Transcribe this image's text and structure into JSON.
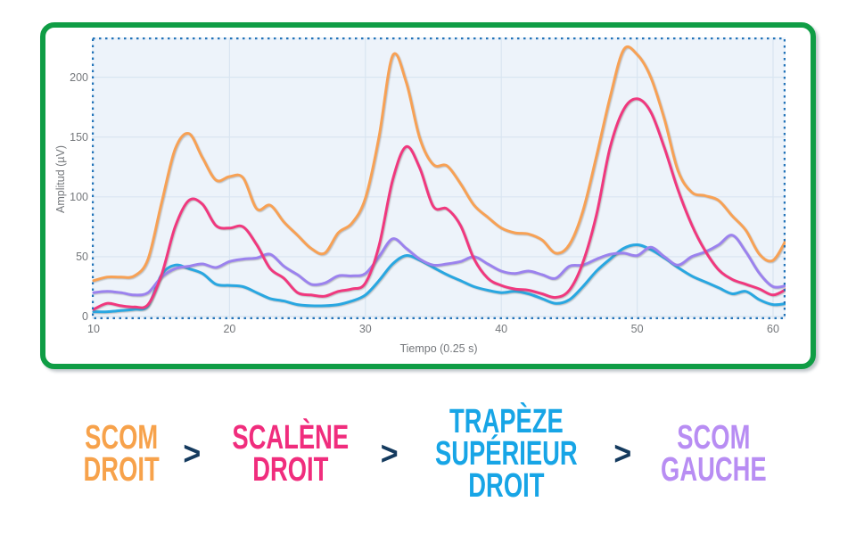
{
  "chart_panel": {
    "frame_color": "#0F9D45",
    "selection_border_color": "#2273B8",
    "plot_background": "#EDF3FA",
    "grid_color": "#D9E5F1",
    "axis_text_color": "#74777B",
    "y_axis_title": "Amplitud (µV)",
    "x_axis_title": "Tiempo (0.25 s)",
    "y_ticks": [
      0,
      50,
      100,
      150,
      200
    ],
    "x_ticks": [
      10,
      20,
      30,
      40,
      50,
      60
    ]
  },
  "chart_data": {
    "type": "line",
    "xlabel": "Tiempo (0.25 s)",
    "ylabel": "Amplitud (µV)",
    "xlim": [
      10,
      61
    ],
    "ylim": [
      0,
      233
    ],
    "grid": true,
    "legend_position": "none",
    "x": [
      10,
      11,
      12,
      13,
      14,
      15,
      16,
      17,
      18,
      19,
      20,
      21,
      22,
      23,
      24,
      25,
      26,
      27,
      28,
      29,
      30,
      31,
      32,
      33,
      34,
      35,
      36,
      37,
      38,
      39,
      40,
      41,
      42,
      43,
      44,
      45,
      46,
      47,
      48,
      49,
      50,
      51,
      52,
      53,
      54,
      55,
      56,
      57,
      58,
      59,
      60,
      61
    ],
    "series": [
      {
        "name": "Trapèze supérieur droit",
        "color": "#29A7E1",
        "values": [
          4,
          4,
          5,
          6,
          9,
          35,
          43,
          40,
          36,
          27,
          26,
          25,
          20,
          15,
          13,
          10,
          9,
          9,
          10,
          13,
          18,
          30,
          44,
          51,
          47,
          41,
          35,
          30,
          25,
          22,
          20,
          21,
          19,
          15,
          11,
          14,
          25,
          38,
          48,
          57,
          60,
          56,
          49,
          41,
          34,
          29,
          24,
          19,
          21,
          14,
          10,
          11
        ]
      },
      {
        "name": "SCOM gauche",
        "color": "#9B82EE",
        "values": [
          20,
          21,
          20,
          18,
          20,
          33,
          40,
          42,
          44,
          41,
          46,
          48,
          49,
          52,
          42,
          35,
          27,
          28,
          34,
          34,
          36,
          50,
          65,
          57,
          48,
          43,
          44,
          46,
          50,
          44,
          38,
          36,
          38,
          35,
          32,
          42,
          43,
          48,
          52,
          53,
          51,
          58,
          50,
          43,
          50,
          54,
          60,
          68,
          54,
          36,
          25,
          26
        ]
      },
      {
        "name": "Scalène droit",
        "color": "#F0387E",
        "values": [
          6,
          11,
          9,
          8,
          10,
          35,
          75,
          97,
          94,
          76,
          74,
          75,
          60,
          40,
          32,
          20,
          18,
          17,
          21,
          23,
          28,
          59,
          114,
          142,
          124,
          92,
          90,
          76,
          48,
          32,
          26,
          23,
          22,
          19,
          16,
          22,
          45,
          85,
          141,
          173,
          182,
          171,
          141,
          106,
          77,
          55,
          39,
          31,
          27,
          23,
          18,
          23
        ]
      },
      {
        "name": "SCOM droit",
        "color": "#F7A155",
        "values": [
          30,
          33,
          33,
          34,
          48,
          95,
          140,
          153,
          133,
          114,
          117,
          116,
          90,
          93,
          79,
          68,
          57,
          53,
          70,
          78,
          99,
          150,
          218,
          196,
          149,
          127,
          126,
          111,
          93,
          83,
          74,
          70,
          69,
          64,
          53,
          60,
          88,
          134,
          183,
          223,
          219,
          200,
          165,
          122,
          104,
          101,
          97,
          84,
          72,
          52,
          47,
          65
        ]
      }
    ]
  },
  "ranking": {
    "separator": ">",
    "separator_color": "#143A5E",
    "items": [
      {
        "name": "scom-droit",
        "lines": [
          "SCOM",
          "DROIT"
        ],
        "color": "#F7A24B"
      },
      {
        "name": "scalene-droit",
        "lines": [
          "SCALÈNE",
          "DROIT"
        ],
        "color": "#F02D7D"
      },
      {
        "name": "trapeze-superieur-droit",
        "lines": [
          "TRAPÈZE",
          "SUPÉRIEUR",
          "DROIT"
        ],
        "color": "#17A5E6"
      },
      {
        "name": "scom-gauche",
        "lines": [
          "SCOM",
          "GAUCHE"
        ],
        "color": "#B88DF3"
      }
    ]
  }
}
